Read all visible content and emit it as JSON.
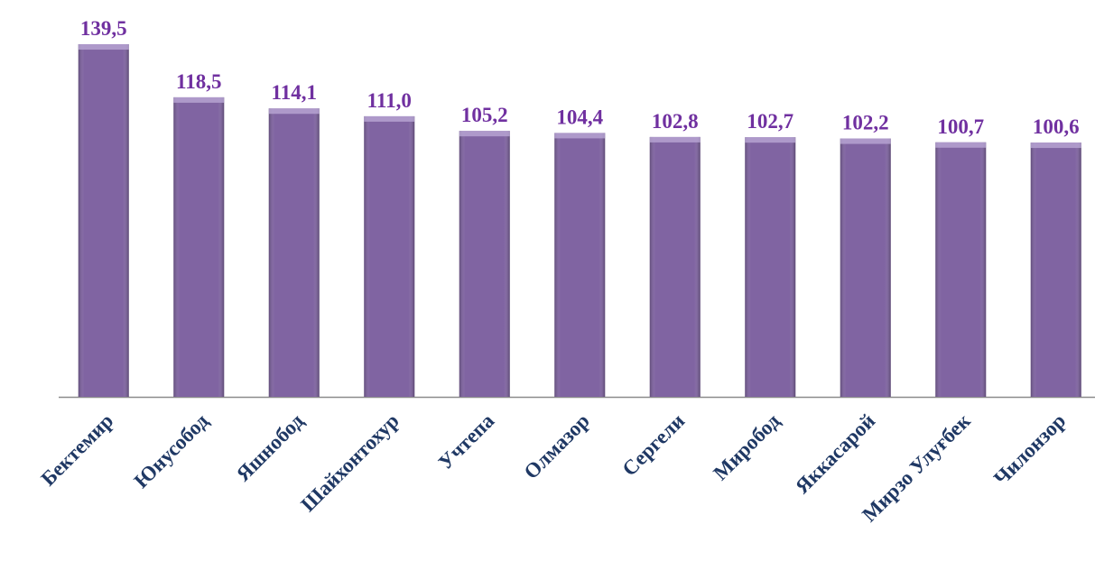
{
  "chart_data": {
    "type": "bar",
    "categories": [
      "Бектемир",
      "Юнусобод",
      "Яшнобод",
      "Шайхонтохур",
      "Учтепа",
      "Олмазор",
      "Сергели",
      "Миробод",
      "Яккасарой",
      "Мирзо Улуғбек",
      "Чилонзор"
    ],
    "values": [
      139.5,
      118.5,
      114.1,
      111.0,
      105.2,
      104.4,
      102.8,
      102.7,
      102.2,
      100.7,
      100.6
    ],
    "value_labels": [
      "139,5",
      "118,5",
      "114,1",
      "111,0",
      "105,2",
      "104,4",
      "102,8",
      "102,7",
      "102,2",
      "100,7",
      "100,6"
    ],
    "color": "#8064a2",
    "ylim": [
      0,
      157
    ]
  }
}
